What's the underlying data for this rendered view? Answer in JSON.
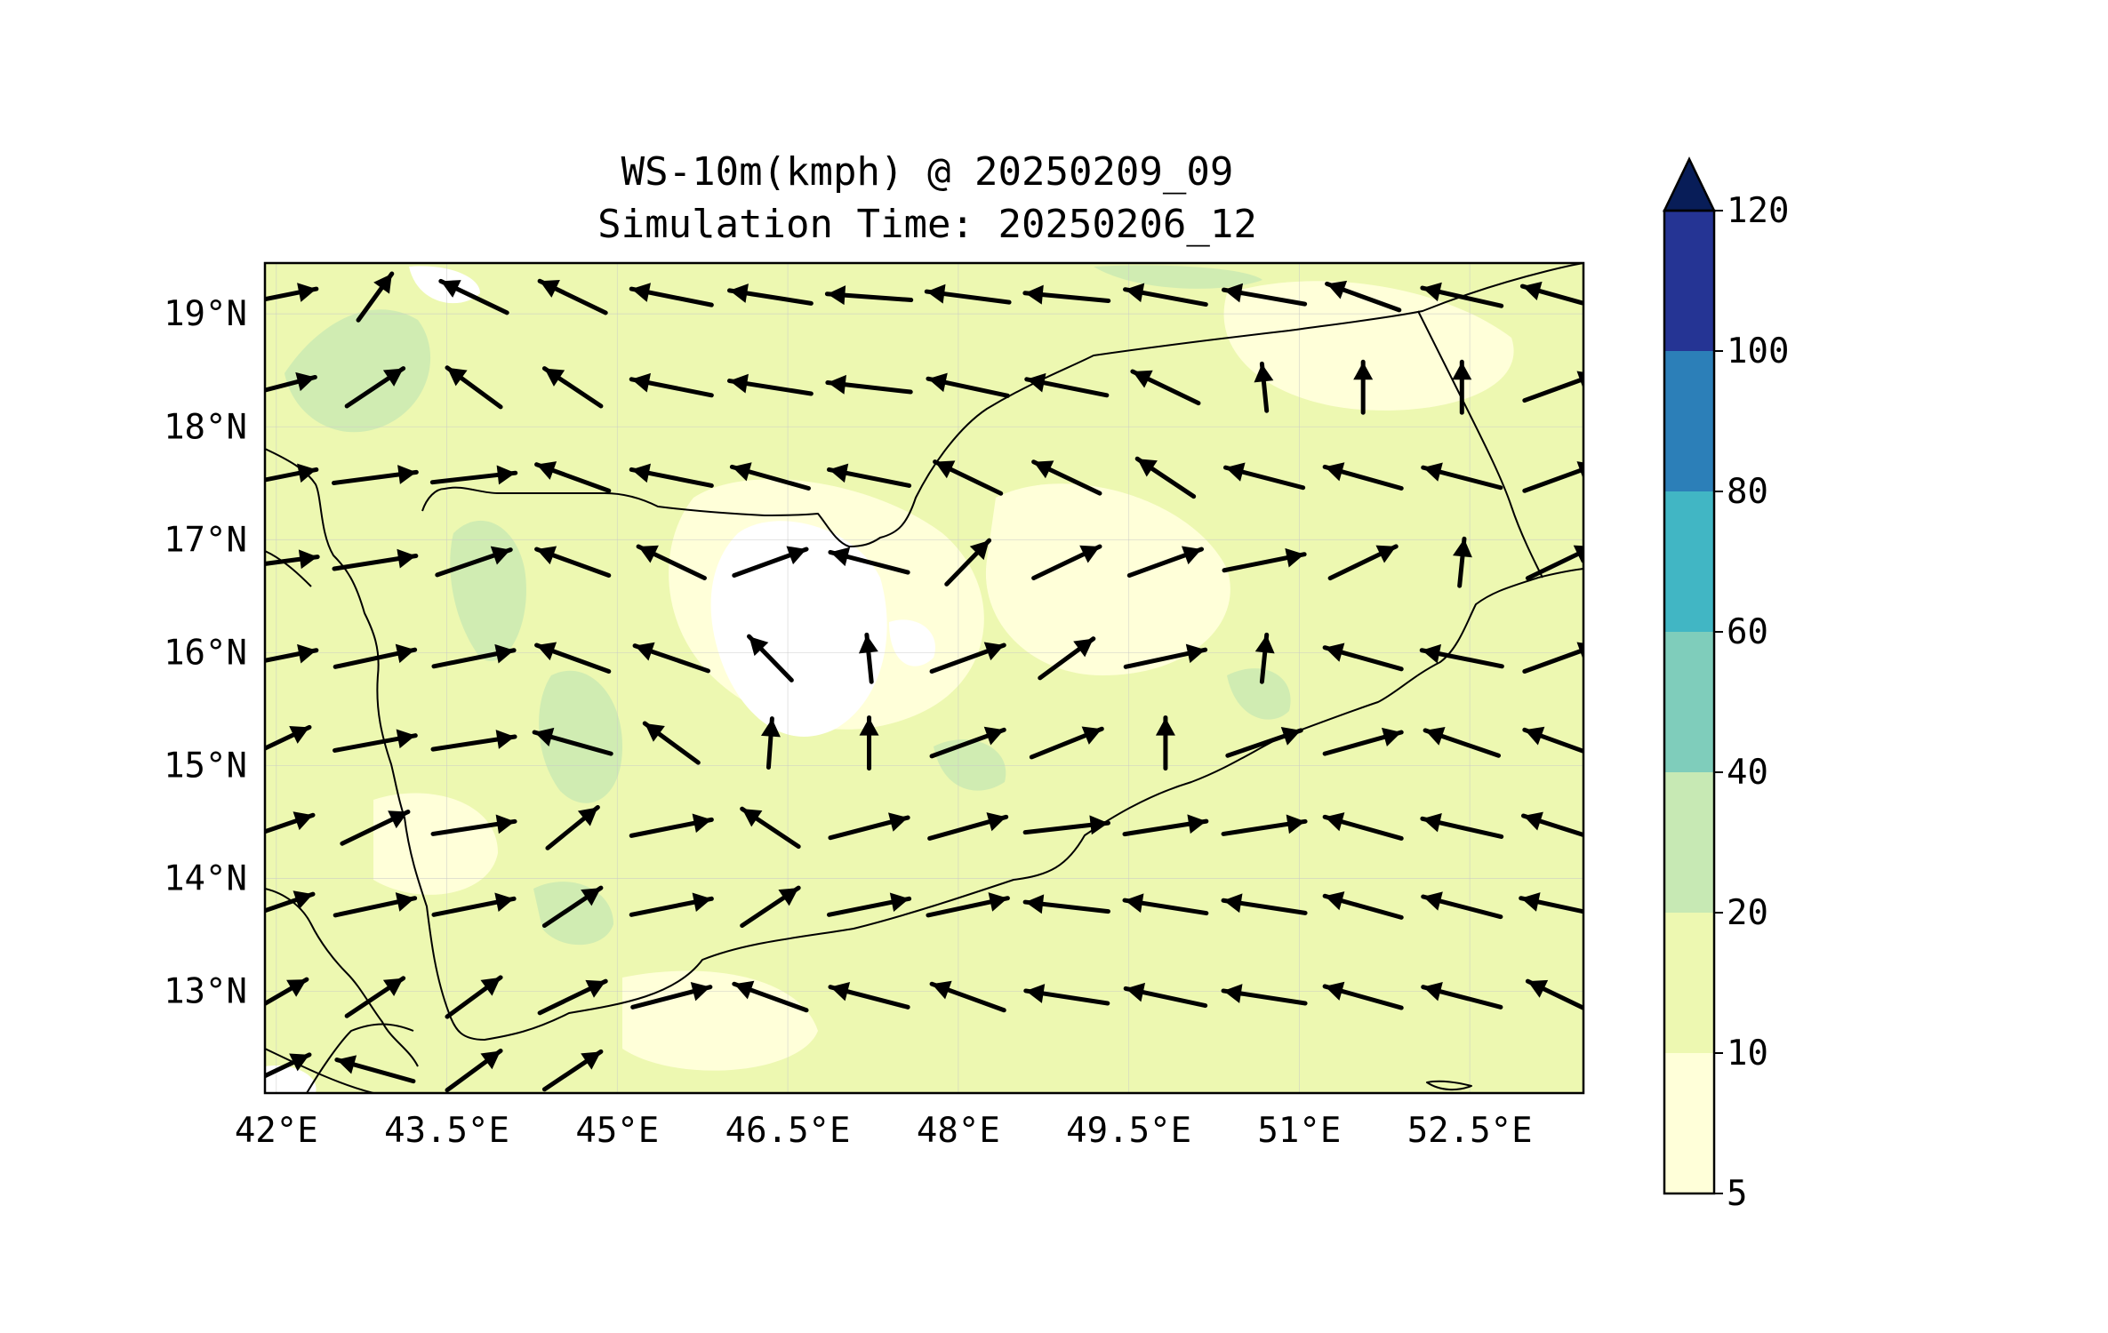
{
  "title": {
    "line1": "WS-10m(kmph) @ 20250209_09",
    "line2": "Simulation Time: 20250206_12"
  },
  "map": {
    "lon_range": [
      41.9,
      53.5
    ],
    "lat_range": [
      12.1,
      19.45
    ],
    "lon_ticks": [
      {
        "value": 42,
        "label": "42°E"
      },
      {
        "value": 43.5,
        "label": "43.5°E"
      },
      {
        "value": 45,
        "label": "45°E"
      },
      {
        "value": 46.5,
        "label": "46.5°E"
      },
      {
        "value": 48,
        "label": "48°E"
      },
      {
        "value": 49.5,
        "label": "49.5°E"
      },
      {
        "value": 51,
        "label": "51°E"
      },
      {
        "value": 52.5,
        "label": "52.5°E"
      }
    ],
    "lat_ticks": [
      {
        "value": 19,
        "label": "19°N"
      },
      {
        "value": 18,
        "label": "18°N"
      },
      {
        "value": 17,
        "label": "17°N"
      },
      {
        "value": 16,
        "label": "16°N"
      },
      {
        "value": 15,
        "label": "15°N"
      },
      {
        "value": 14,
        "label": "14°N"
      },
      {
        "value": 13,
        "label": "13°N"
      }
    ],
    "background_color": "#edf8b1",
    "low_wind_color": "#ffffd9",
    "moderate_wind_color": "#d0ecb2",
    "calm_color": "#ffffff",
    "features": [
      "coastline",
      "country-borders",
      "wind-vectors"
    ]
  },
  "colorbar": {
    "levels": [
      {
        "value": 5,
        "label": "5"
      },
      {
        "value": 10,
        "label": "10"
      },
      {
        "value": 20,
        "label": "20"
      },
      {
        "value": 40,
        "label": "40"
      },
      {
        "value": 60,
        "label": "60"
      },
      {
        "value": 80,
        "label": "80"
      },
      {
        "value": 100,
        "label": "100"
      },
      {
        "value": 120,
        "label": "120"
      }
    ],
    "colors": [
      "#ffffd9",
      "#edf8b1",
      "#c7e9b4",
      "#7fcdbb",
      "#41b6c4",
      "#2c7fb8",
      "#253494",
      "#081d58"
    ],
    "extend": "max"
  },
  "wind_vectors": {
    "rows": [
      {
        "lat": 19.15,
        "u": [
          0.6,
          0.15,
          -0.3,
          -0.4,
          -0.6,
          -0.8,
          -0.9,
          -0.85,
          -0.85,
          -0.75,
          -0.65,
          -0.5,
          -0.55,
          -0.6
        ]
      },
      {
        "lat": 18.35,
        "u": [
          0.5,
          0.3,
          -0.2,
          -0.3,
          -0.6,
          -0.8,
          -0.8,
          -0.7,
          -0.6,
          -0.4,
          -0.1,
          0.0,
          0.0,
          0.5
        ]
      },
      {
        "lat": 17.55,
        "u": [
          0.6,
          0.85,
          0.8,
          -0.5,
          -0.6,
          -0.6,
          -0.6,
          -0.4,
          -0.3,
          -0.3,
          -0.5,
          -0.6,
          -0.5,
          0.5
        ]
      },
      {
        "lat": 16.8,
        "u": [
          0.75,
          0.8,
          0.4,
          -0.5,
          -0.3,
          0.5,
          -0.5,
          0.2,
          0.3,
          0.5,
          0.6,
          0.4,
          0.1,
          0.4
        ]
      },
      {
        "lat": 15.95,
        "u": [
          0.6,
          0.7,
          0.6,
          -0.5,
          -0.4,
          -0.2,
          -0.1,
          0.5,
          0.2,
          0.7,
          0.1,
          -0.6,
          -0.6,
          0.5
        ]
      },
      {
        "lat": 15.2,
        "u": [
          0.3,
          0.75,
          0.7,
          -0.6,
          -0.2,
          0.1,
          0.0,
          0.5,
          0.35,
          0.0,
          0.4,
          0.6,
          -0.4,
          -0.5
        ]
      },
      {
        "lat": 14.45,
        "u": [
          0.4,
          0.4,
          0.7,
          0.25,
          0.6,
          -0.3,
          0.5,
          0.6,
          0.8,
          0.8,
          0.7,
          -0.6,
          -0.55,
          -0.55
        ]
      },
      {
        "lat": 13.75,
        "u": [
          0.4,
          0.7,
          0.6,
          0.3,
          0.6,
          0.3,
          0.6,
          0.7,
          -0.8,
          -0.8,
          -0.7,
          -0.6,
          -0.5,
          -0.7
        ]
      },
      {
        "lat": 12.95,
        "u": [
          0.25,
          0.3,
          0.2,
          0.4,
          0.5,
          -0.5,
          -0.5,
          -0.5,
          -0.7,
          -0.7,
          -0.7,
          -0.6,
          -0.5,
          -0.4
        ]
      },
      {
        "lat": 12.3,
        "u": [
          0.3,
          -0.6,
          0.2,
          0.3
        ]
      }
    ]
  }
}
